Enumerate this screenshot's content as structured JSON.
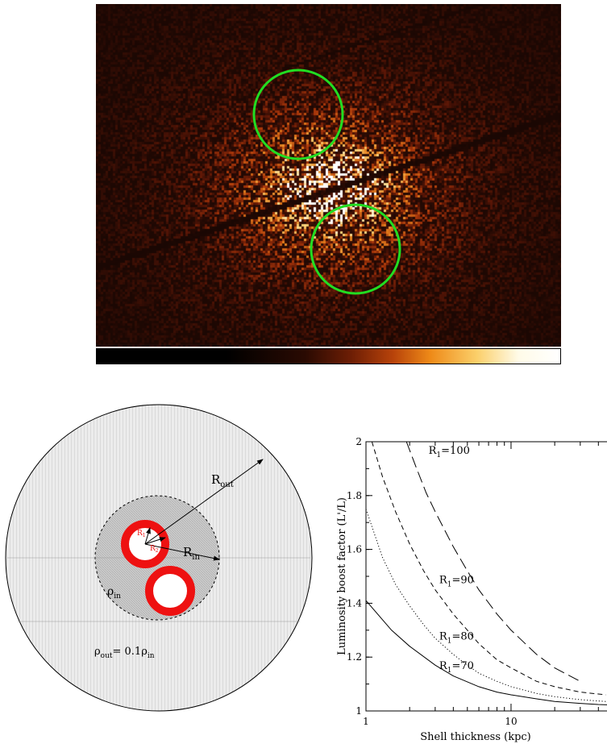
{
  "xray_image": {
    "colorbar": [
      "#000000",
      "#2a0a02",
      "#6e1e05",
      "#b8430a",
      "#ee8a18",
      "#fbcf6a",
      "#fffbe8",
      "#ffffff"
    ],
    "region_circle_color": "#22dd22"
  },
  "schematic": {
    "labels": {
      "r_out": "R",
      "r_out_sub": "out",
      "r_in": "R",
      "r_in_sub": "in",
      "rho_in": "ρ",
      "rho_in_sub": "in",
      "rho_out_eq_a": "ρ",
      "rho_out_eq_sub1": "out",
      "rho_out_eq_b": "= 0.1ρ",
      "rho_out_eq_sub2": "in",
      "r1": "R",
      "r1_sub": "1",
      "r2": "R",
      "r2_sub": "2"
    },
    "colors": {
      "shell": "#ee1111",
      "outer_fill": "#e6e6e6",
      "inner_fill": "#c8c8c8"
    }
  },
  "chart_data": {
    "type": "line",
    "xlabel": "Shell thickness (kpc)",
    "ylabel": "Luminosity boost factor (L'/L)",
    "x_scale": "log",
    "xlim": [
      1,
      60
    ],
    "ylim": [
      1,
      2
    ],
    "x_ticks": [
      {
        "value": 1,
        "label": "1"
      },
      {
        "value": 10,
        "label": "10"
      }
    ],
    "y_ticks": [
      {
        "value": 1,
        "label": "1"
      },
      {
        "value": 1.2,
        "label": "1.2"
      },
      {
        "value": 1.4,
        "label": "1.4"
      },
      {
        "value": 1.6,
        "label": "1.6"
      },
      {
        "value": 1.8,
        "label": "1.8"
      },
      {
        "value": 2,
        "label": "2"
      }
    ],
    "series": [
      {
        "name": "R1=70",
        "label_main": "R",
        "label_sub": "1",
        "label_rest": "=70",
        "style": "solid",
        "x": [
          1,
          1.5,
          2,
          3,
          4,
          6,
          8,
          10,
          15,
          20,
          30,
          40,
          50,
          60
        ],
        "y": [
          1.41,
          1.3,
          1.24,
          1.17,
          1.13,
          1.09,
          1.07,
          1.06,
          1.045,
          1.035,
          1.028,
          1.024,
          1.022,
          1.02
        ]
      },
      {
        "name": "R1=80",
        "label_main": "R",
        "label_sub": "1",
        "label_rest": "=80",
        "style": "dotted",
        "x": [
          1,
          1.3,
          1.6,
          2,
          2.5,
          3,
          4,
          5,
          6,
          8,
          10,
          15,
          20,
          30,
          40,
          55
        ],
        "y": [
          1.75,
          1.57,
          1.47,
          1.39,
          1.32,
          1.27,
          1.21,
          1.17,
          1.14,
          1.11,
          1.09,
          1.065,
          1.053,
          1.042,
          1.037,
          1.032
        ]
      },
      {
        "name": "R1=90",
        "label_main": "R",
        "label_sub": "1",
        "label_rest": "=90",
        "style": "dashed",
        "x": [
          1.1,
          1.3,
          1.6,
          2,
          2.5,
          3,
          4,
          5,
          6,
          8,
          10,
          15,
          20,
          30,
          45
        ],
        "y": [
          2.0,
          1.87,
          1.74,
          1.62,
          1.52,
          1.45,
          1.36,
          1.3,
          1.25,
          1.19,
          1.16,
          1.11,
          1.09,
          1.07,
          1.06
        ]
      },
      {
        "name": "R1=100",
        "label_main": "R",
        "label_sub": "1",
        "label_rest": "=100",
        "style": "longdash",
        "x": [
          1.9,
          2.2,
          2.6,
          3,
          4,
          5,
          6,
          8,
          10,
          15,
          20,
          30
        ],
        "y": [
          2.0,
          1.91,
          1.81,
          1.74,
          1.61,
          1.52,
          1.45,
          1.36,
          1.3,
          1.21,
          1.16,
          1.11
        ]
      }
    ]
  }
}
